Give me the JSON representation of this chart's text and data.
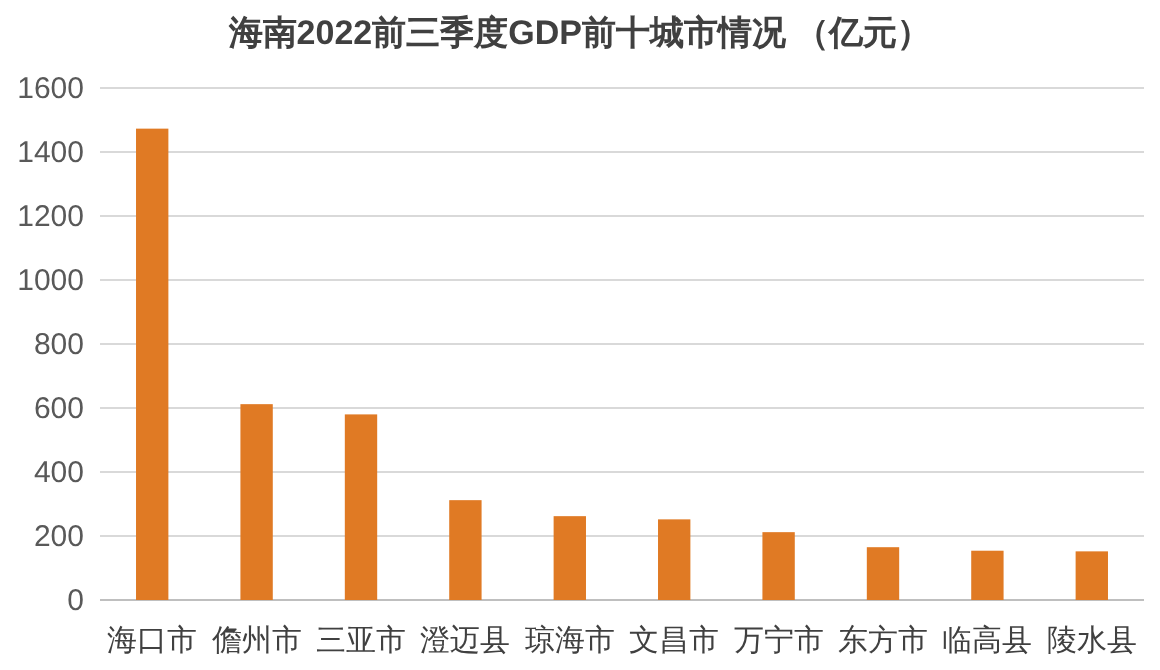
{
  "chart_data": {
    "type": "bar",
    "title": "海南2022前三季度GDP前十城市情况 （亿元）",
    "categories": [
      "海口市",
      "儋州市",
      "三亚市",
      "澄迈县",
      "琼海市",
      "文昌市",
      "万宁市",
      "东方市",
      "临高县",
      "陵水县"
    ],
    "values": [
      1473,
      612,
      580,
      312,
      262,
      252,
      212,
      165,
      154,
      152
    ],
    "color": "#e07a24",
    "ylim": [
      0,
      1600
    ],
    "yticks": [
      0,
      200,
      400,
      600,
      800,
      1000,
      1200,
      1400,
      1600
    ],
    "grid": "y"
  }
}
